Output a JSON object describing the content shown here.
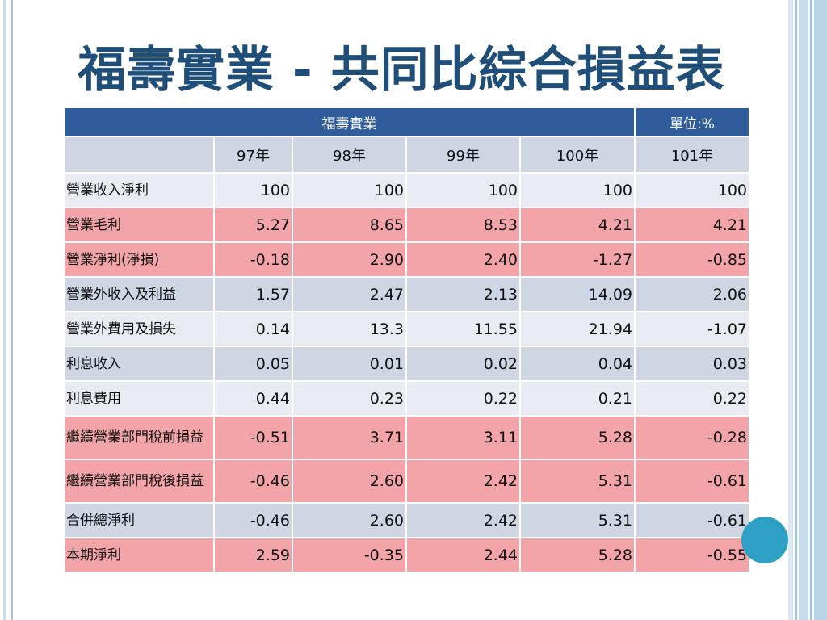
{
  "slide": {
    "title": "福壽實業 - 共同比綜合損益表"
  },
  "table": {
    "company": "福壽實業",
    "unit": "單位:%",
    "columns": [
      "",
      "97年",
      "98年",
      "99年",
      "100年",
      "101年"
    ],
    "rows": [
      {
        "label": "營業收入淨利",
        "values": [
          "100",
          "100",
          "100",
          "100",
          "100"
        ],
        "style": "light"
      },
      {
        "label": "營業毛利",
        "values": [
          "5.27",
          "8.65",
          "8.53",
          "4.21",
          "4.21"
        ],
        "style": "pink"
      },
      {
        "label": "營業淨利(淨損)",
        "values": [
          "-0.18",
          "2.90",
          "2.40",
          "-1.27",
          "-0.85"
        ],
        "style": "pink"
      },
      {
        "label": "營業外收入及利益",
        "values": [
          "1.57",
          "2.47",
          "2.13",
          "14.09",
          "2.06"
        ],
        "style": "blue"
      },
      {
        "label": "營業外費用及損失",
        "values": [
          "0.14",
          "13.3",
          "11.55",
          "21.94",
          "-1.07"
        ],
        "style": "light"
      },
      {
        "label": "利息收入",
        "values": [
          "0.05",
          "0.01",
          "0.02",
          "0.04",
          "0.03"
        ],
        "style": "blue"
      },
      {
        "label": "利息費用",
        "values": [
          "0.44",
          "0.23",
          "0.22",
          "0.21",
          "0.22"
        ],
        "style": "light"
      },
      {
        "label": "繼續營業部門稅前損益",
        "values": [
          "-0.51",
          "3.71",
          "3.11",
          "5.28",
          "-0.28"
        ],
        "style": "pink"
      },
      {
        "label": "繼續營業部門稅後損益",
        "values": [
          "-0.46",
          "2.60",
          "2.42",
          "5.31",
          "-0.61"
        ],
        "style": "pink"
      },
      {
        "label": "合併總淨利",
        "values": [
          "-0.46",
          "2.60",
          "2.42",
          "5.31",
          "-0.61"
        ],
        "style": "blue"
      },
      {
        "label": "本期淨利",
        "values": [
          "2.59",
          "-0.35",
          "2.44",
          "5.28",
          "-0.55"
        ],
        "style": "pink"
      }
    ]
  },
  "theme": {
    "title_color": "#1f4e79",
    "header_color": "#2f5c9a",
    "pink_row": "#f2a4a8",
    "blue_row": "#cfd5e3",
    "light_row": "#e8ebf1",
    "accent_circle": "#2fa0c5"
  }
}
